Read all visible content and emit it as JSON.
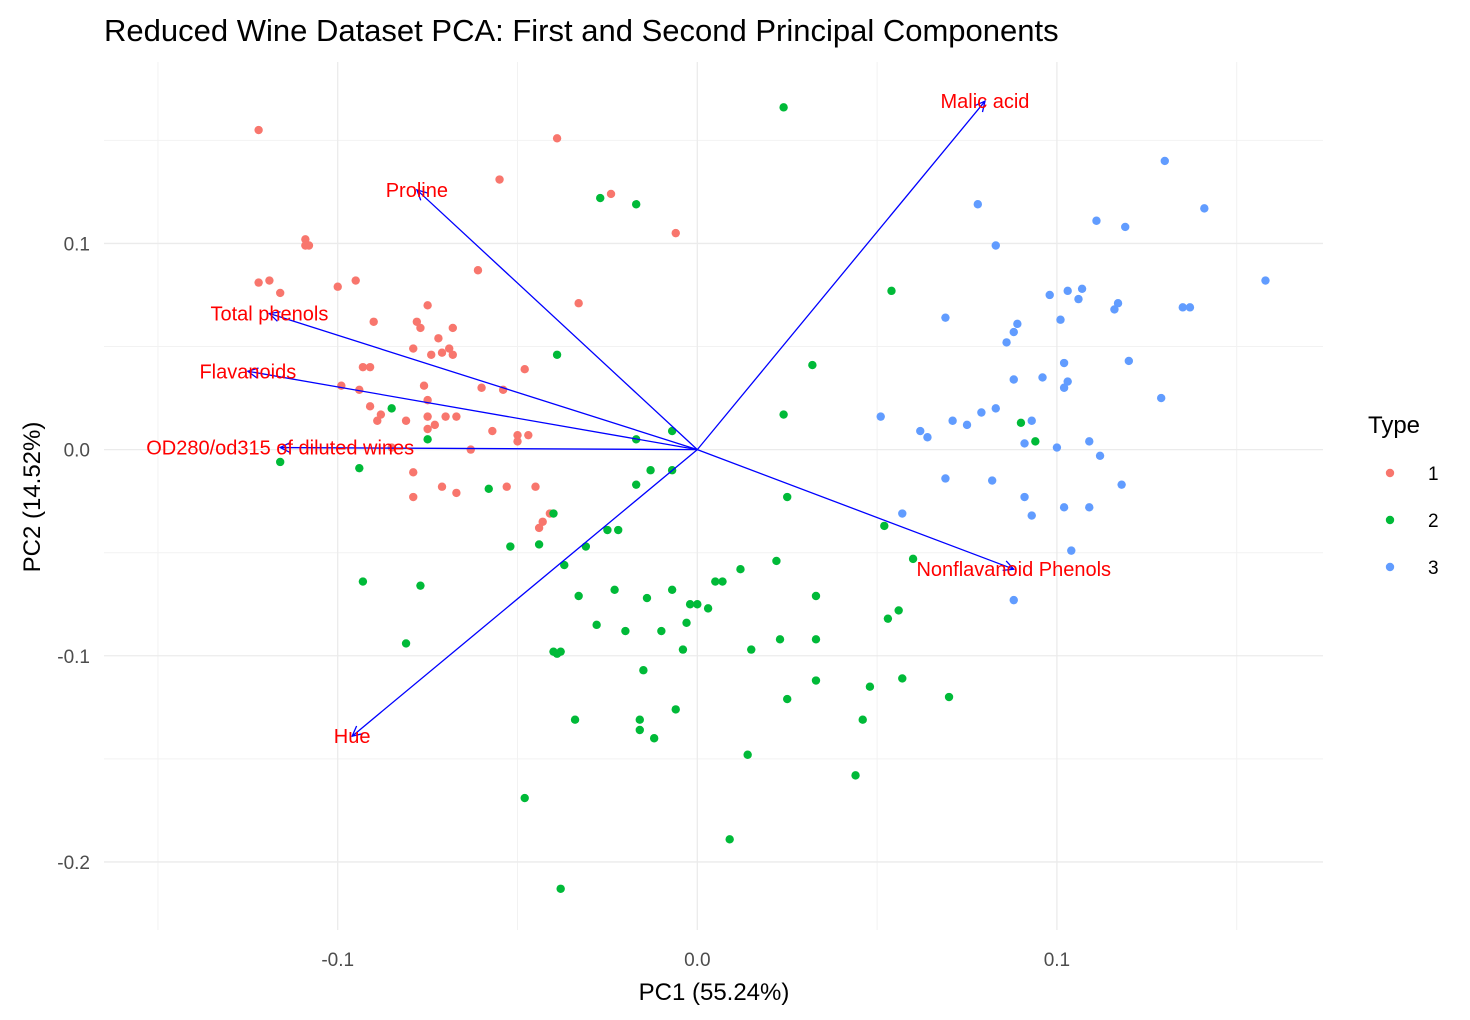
{
  "chart_data": {
    "type": "scatter",
    "title": "Reduced Wine Dataset PCA: First and Second Principal Components",
    "xlabel": "PC1 (55.24%)",
    "ylabel": "PC2 (14.52%)",
    "xlim": [
      -0.165,
      0.174
    ],
    "ylim": [
      -0.233,
      0.188
    ],
    "x_ticks": [
      -0.1,
      0.0,
      0.1
    ],
    "x_tick_labels": [
      "-0.1",
      "0.0",
      "0.1"
    ],
    "y_ticks": [
      -0.2,
      -0.1,
      0.0,
      0.1
    ],
    "y_tick_labels": [
      "-0.2",
      "-0.1",
      "0.0",
      "0.1"
    ],
    "x_minor_ticks": [
      -0.15,
      -0.05,
      0.05,
      0.15
    ],
    "y_minor_ticks": [
      -0.15,
      -0.05,
      0.05,
      0.15
    ],
    "grid": true,
    "legend": {
      "title": "Type",
      "position": "right",
      "entries": [
        {
          "label": "1",
          "color": "#F8766D"
        },
        {
          "label": "2",
          "color": "#00BA38"
        },
        {
          "label": "3",
          "color": "#619CFF"
        }
      ]
    },
    "arrow_color": "#0000FF",
    "label_color": "#FF0000",
    "loadings": [
      {
        "name": "Malic acid",
        "x": 0.08,
        "y": 0.169
      },
      {
        "name": "Proline",
        "x": -0.078,
        "y": 0.126
      },
      {
        "name": "Total phenols",
        "x": -0.119,
        "y": 0.066
      },
      {
        "name": "Flavanoids",
        "x": -0.125,
        "y": 0.038
      },
      {
        "name": "OD280/od315 of diluted wines",
        "x": -0.116,
        "y": 0.001
      },
      {
        "name": "Hue",
        "x": -0.096,
        "y": -0.139
      },
      {
        "name": "Nonflavanoid Phenols",
        "x": 0.088,
        "y": -0.058
      }
    ],
    "series": [
      {
        "name": "1",
        "color": "#F8766D",
        "points": [
          [
            -0.122,
            0.155
          ],
          [
            -0.039,
            0.151
          ],
          [
            -0.109,
            0.102
          ],
          [
            -0.109,
            0.099
          ],
          [
            -0.108,
            0.099
          ],
          [
            -0.055,
            0.131
          ],
          [
            -0.024,
            0.124
          ],
          [
            -0.006,
            0.105
          ],
          [
            -0.061,
            0.087
          ],
          [
            -0.033,
            0.071
          ],
          [
            -0.116,
            0.076
          ],
          [
            -0.119,
            0.082
          ],
          [
            -0.122,
            0.081
          ],
          [
            -0.1,
            0.079
          ],
          [
            -0.095,
            0.082
          ],
          [
            -0.075,
            0.07
          ],
          [
            -0.09,
            0.062
          ],
          [
            -0.078,
            0.062
          ],
          [
            -0.077,
            0.059
          ],
          [
            -0.072,
            0.054
          ],
          [
            -0.068,
            0.059
          ],
          [
            -0.079,
            0.049
          ],
          [
            -0.071,
            0.047
          ],
          [
            -0.069,
            0.049
          ],
          [
            -0.068,
            0.046
          ],
          [
            -0.074,
            0.046
          ],
          [
            -0.093,
            0.04
          ],
          [
            -0.091,
            0.04
          ],
          [
            -0.048,
            0.039
          ],
          [
            -0.099,
            0.031
          ],
          [
            -0.094,
            0.029
          ],
          [
            -0.091,
            0.021
          ],
          [
            -0.088,
            0.017
          ],
          [
            -0.089,
            0.014
          ],
          [
            -0.076,
            0.031
          ],
          [
            -0.075,
            0.024
          ],
          [
            -0.06,
            0.03
          ],
          [
            -0.075,
            0.016
          ],
          [
            -0.07,
            0.016
          ],
          [
            -0.067,
            0.016
          ],
          [
            -0.073,
            0.012
          ],
          [
            -0.081,
            0.014
          ],
          [
            -0.075,
            0.01
          ],
          [
            -0.057,
            0.009
          ],
          [
            -0.054,
            0.029
          ],
          [
            -0.05,
            0.007
          ],
          [
            -0.047,
            0.007
          ],
          [
            -0.05,
            0.004
          ],
          [
            -0.085,
            0.001
          ],
          [
            -0.063,
            0.0
          ],
          [
            -0.079,
            -0.023
          ],
          [
            -0.079,
            -0.011
          ],
          [
            -0.071,
            -0.018
          ],
          [
            -0.067,
            -0.021
          ],
          [
            -0.053,
            -0.018
          ],
          [
            -0.045,
            -0.018
          ],
          [
            -0.041,
            -0.031
          ],
          [
            -0.044,
            -0.038
          ],
          [
            -0.043,
            -0.035
          ]
        ]
      },
      {
        "name": "2",
        "color": "#00BA38",
        "points": [
          [
            0.024,
            0.166
          ],
          [
            -0.027,
            0.122
          ],
          [
            -0.017,
            0.119
          ],
          [
            -0.039,
            0.046
          ],
          [
            -0.085,
            0.02
          ],
          [
            -0.116,
            -0.006
          ],
          [
            -0.094,
            -0.009
          ],
          [
            -0.075,
            0.005
          ],
          [
            0.054,
            0.077
          ],
          [
            0.032,
            0.041
          ],
          [
            0.024,
            0.017
          ],
          [
            -0.007,
            0.009
          ],
          [
            -0.017,
            0.005
          ],
          [
            -0.013,
            -0.01
          ],
          [
            -0.007,
            -0.01
          ],
          [
            -0.017,
            -0.017
          ],
          [
            -0.058,
            -0.019
          ],
          [
            -0.04,
            -0.031
          ],
          [
            -0.044,
            -0.046
          ],
          [
            -0.052,
            -0.047
          ],
          [
            -0.022,
            -0.039
          ],
          [
            -0.025,
            -0.039
          ],
          [
            -0.031,
            -0.047
          ],
          [
            -0.037,
            -0.056
          ],
          [
            0.025,
            -0.023
          ],
          [
            0.052,
            -0.037
          ],
          [
            0.09,
            0.013
          ],
          [
            0.094,
            0.004
          ],
          [
            0.06,
            -0.053
          ],
          [
            0.022,
            -0.054
          ],
          [
            0.005,
            -0.064
          ],
          [
            0.007,
            -0.064
          ],
          [
            0.012,
            -0.058
          ],
          [
            -0.023,
            -0.068
          ],
          [
            -0.014,
            -0.072
          ],
          [
            -0.007,
            -0.068
          ],
          [
            -0.002,
            -0.075
          ],
          [
            0.0,
            -0.075
          ],
          [
            0.003,
            -0.077
          ],
          [
            -0.003,
            -0.084
          ],
          [
            -0.01,
            -0.088
          ],
          [
            0.033,
            -0.071
          ],
          [
            0.056,
            -0.078
          ],
          [
            0.053,
            -0.082
          ],
          [
            -0.033,
            -0.071
          ],
          [
            -0.02,
            -0.088
          ],
          [
            -0.028,
            -0.085
          ],
          [
            -0.038,
            -0.098
          ],
          [
            -0.04,
            -0.098
          ],
          [
            -0.039,
            -0.099
          ],
          [
            -0.004,
            -0.097
          ],
          [
            0.015,
            -0.097
          ],
          [
            0.023,
            -0.092
          ],
          [
            0.033,
            -0.092
          ],
          [
            -0.015,
            -0.107
          ],
          [
            0.033,
            -0.112
          ],
          [
            0.057,
            -0.111
          ],
          [
            0.048,
            -0.115
          ],
          [
            0.07,
            -0.12
          ],
          [
            0.025,
            -0.121
          ],
          [
            -0.006,
            -0.126
          ],
          [
            -0.016,
            -0.131
          ],
          [
            -0.034,
            -0.131
          ],
          [
            -0.016,
            -0.136
          ],
          [
            -0.012,
            -0.14
          ],
          [
            0.046,
            -0.131
          ],
          [
            0.014,
            -0.148
          ],
          [
            0.044,
            -0.158
          ],
          [
            -0.048,
            -0.169
          ],
          [
            0.009,
            -0.189
          ],
          [
            -0.038,
            -0.213
          ],
          [
            -0.093,
            -0.064
          ],
          [
            -0.077,
            -0.066
          ],
          [
            -0.081,
            -0.094
          ]
        ]
      },
      {
        "name": "3",
        "color": "#619CFF",
        "points": [
          [
            0.13,
            0.14
          ],
          [
            0.078,
            0.119
          ],
          [
            0.141,
            0.117
          ],
          [
            0.111,
            0.111
          ],
          [
            0.119,
            0.108
          ],
          [
            0.083,
            0.099
          ],
          [
            0.158,
            0.082
          ],
          [
            0.107,
            0.078
          ],
          [
            0.106,
            0.073
          ],
          [
            0.103,
            0.077
          ],
          [
            0.098,
            0.075
          ],
          [
            0.117,
            0.071
          ],
          [
            0.116,
            0.068
          ],
          [
            0.135,
            0.069
          ],
          [
            0.137,
            0.069
          ],
          [
            0.069,
            0.064
          ],
          [
            0.101,
            0.063
          ],
          [
            0.089,
            0.061
          ],
          [
            0.088,
            0.057
          ],
          [
            0.086,
            0.052
          ],
          [
            0.102,
            0.042
          ],
          [
            0.12,
            0.043
          ],
          [
            0.088,
            0.034
          ],
          [
            0.096,
            0.035
          ],
          [
            0.103,
            0.033
          ],
          [
            0.102,
            0.03
          ],
          [
            0.129,
            0.025
          ],
          [
            0.083,
            0.02
          ],
          [
            0.079,
            0.018
          ],
          [
            0.051,
            0.016
          ],
          [
            0.071,
            0.014
          ],
          [
            0.075,
            0.012
          ],
          [
            0.093,
            0.014
          ],
          [
            0.062,
            0.009
          ],
          [
            0.064,
            0.006
          ],
          [
            0.091,
            0.003
          ],
          [
            0.1,
            0.001
          ],
          [
            0.109,
            0.004
          ],
          [
            0.112,
            -0.003
          ],
          [
            0.069,
            -0.014
          ],
          [
            0.082,
            -0.015
          ],
          [
            0.091,
            -0.023
          ],
          [
            0.102,
            -0.028
          ],
          [
            0.093,
            -0.032
          ],
          [
            0.109,
            -0.028
          ],
          [
            0.118,
            -0.017
          ],
          [
            0.057,
            -0.031
          ],
          [
            0.104,
            -0.049
          ],
          [
            0.088,
            -0.073
          ]
        ]
      }
    ]
  }
}
